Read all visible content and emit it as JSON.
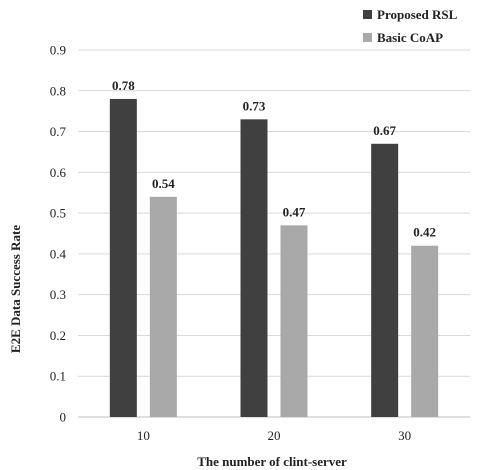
{
  "chart_data": {
    "type": "bar",
    "categories": [
      "10",
      "20",
      "30"
    ],
    "series": [
      {
        "name": "Proposed RSL",
        "values": [
          0.78,
          0.73,
          0.67
        ],
        "color": "#404040"
      },
      {
        "name": "Basic CoAP",
        "values": [
          0.54,
          0.47,
          0.42
        ],
        "color": "#a9a9a9"
      }
    ],
    "value_labels": {
      "Proposed RSL": [
        "0.78",
        "0.73",
        "0.67"
      ],
      "Basic CoAP": [
        "0.54",
        "0.47",
        "0.42"
      ]
    },
    "yticks": [
      "0",
      "0.1",
      "0.2",
      "0.3",
      "0.4",
      "0.5",
      "0.6",
      "0.7",
      "0.8",
      "0.9"
    ],
    "ylim": [
      0,
      0.9
    ],
    "xlabel": "The number  of clint-server",
    "ylabel": "E2E Data Success Rate",
    "grid": true,
    "legend_position": "top-right"
  }
}
